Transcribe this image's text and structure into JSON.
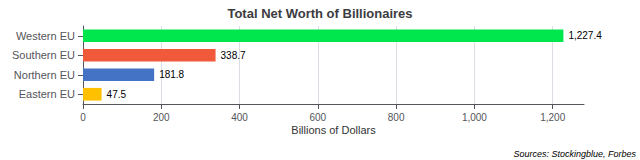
{
  "chart_data": {
    "type": "bar",
    "orientation": "horizontal",
    "title": "Total Net Worth of Billionaires",
    "categories": [
      "Eastern EU",
      "Northern EU",
      "Southern EU",
      "Western EU"
    ],
    "values": [
      47.5,
      181.8,
      338.7,
      1227.4
    ],
    "value_labels": [
      "47.5",
      "181.8",
      "338.7",
      "1,227.4"
    ],
    "colors": [
      "#ffc000",
      "#4472c4",
      "#f05a3a",
      "#00e64d"
    ],
    "xlabel": "Billions of Dollars",
    "xlim": [
      0,
      1280
    ],
    "xticks": [
      0,
      200,
      400,
      600,
      800,
      {
        "value": 1000,
        "label": "1,000"
      },
      {
        "value": 1200,
        "label": "1,200"
      }
    ],
    "grid": true,
    "data_labels": true,
    "annotation": "Sources: Stockingblue, Forbes"
  }
}
